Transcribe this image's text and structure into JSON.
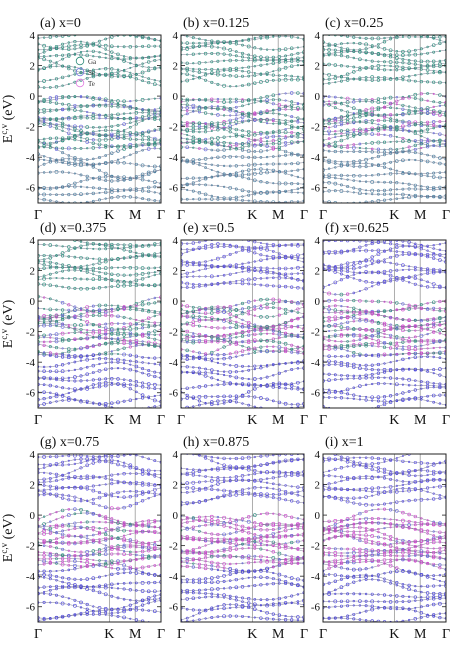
{
  "figure": {
    "ylabel_main": "E",
    "ylabel_sup": "c,v",
    "ylabel_unit": " (eV)"
  },
  "chart_data": [
    {
      "type": "line",
      "title": "(a) x=0",
      "ylim": [
        -7,
        4
      ],
      "yticks": [
        4,
        2,
        0,
        -2,
        -4,
        -6
      ],
      "xticks": [
        "Γ",
        "K",
        "M",
        "Γ"
      ],
      "xtick_pos": [
        0,
        0.58,
        0.79,
        1
      ],
      "weights": {
        "Ga": 1.0,
        "Sc": 0.0,
        "Te": 0.6
      },
      "legend": [
        "Ga",
        "Sc",
        "Te"
      ],
      "legend_colors": [
        "#2a8a78",
        "#7777dd",
        "#e07ae0"
      ],
      "ylabel": "E c,v (eV)"
    },
    {
      "type": "line",
      "title": "(b) x=0.125",
      "ylim": [
        -7,
        4
      ],
      "yticks": [
        4,
        2,
        0,
        -2,
        -4,
        -6
      ],
      "xticks": [
        "Γ",
        "K",
        "M",
        "Γ"
      ],
      "xtick_pos": [
        0,
        0.58,
        0.79,
        1
      ],
      "weights": {
        "Ga": 0.875,
        "Sc": 0.125,
        "Te": 0.6
      }
    },
    {
      "type": "line",
      "title": "(c) x=0.25",
      "ylim": [
        -7,
        4
      ],
      "yticks": [
        4,
        2,
        0,
        -2,
        -4,
        -6
      ],
      "xticks": [
        "Γ",
        "K",
        "M",
        "Γ"
      ],
      "xtick_pos": [
        0,
        0.58,
        0.79,
        1
      ],
      "weights": {
        "Ga": 0.75,
        "Sc": 0.25,
        "Te": 0.6
      }
    },
    {
      "type": "line",
      "title": "(d) x=0.375",
      "ylim": [
        -7,
        4
      ],
      "yticks": [
        4,
        2,
        0,
        -2,
        -4,
        -6
      ],
      "xticks": [
        "Γ",
        "K",
        "M",
        "Γ"
      ],
      "xtick_pos": [
        0,
        0.58,
        0.79,
        1
      ],
      "weights": {
        "Ga": 0.625,
        "Sc": 0.375,
        "Te": 0.6
      },
      "ylabel": "E c,v (eV)"
    },
    {
      "type": "line",
      "title": "(e) x=0.5",
      "ylim": [
        -7,
        4
      ],
      "yticks": [
        4,
        2,
        0,
        -2,
        -4,
        -6
      ],
      "xticks": [
        "Γ",
        "K",
        "M",
        "Γ"
      ],
      "xtick_pos": [
        0,
        0.58,
        0.79,
        1
      ],
      "weights": {
        "Ga": 0.5,
        "Sc": 0.5,
        "Te": 0.6
      }
    },
    {
      "type": "line",
      "title": "(f) x=0.625",
      "ylim": [
        -7,
        4
      ],
      "yticks": [
        4,
        2,
        0,
        -2,
        -4,
        -6
      ],
      "xticks": [
        "Γ",
        "K",
        "M",
        "Γ"
      ],
      "xtick_pos": [
        0,
        0.58,
        0.79,
        1
      ],
      "weights": {
        "Ga": 0.375,
        "Sc": 0.625,
        "Te": 0.6
      }
    },
    {
      "type": "line",
      "title": "(g) x=0.75",
      "ylim": [
        -7,
        4
      ],
      "yticks": [
        4,
        2,
        0,
        -2,
        -4,
        -6
      ],
      "xticks": [
        "Γ",
        "K",
        "M",
        "Γ"
      ],
      "xtick_pos": [
        0,
        0.58,
        0.79,
        1
      ],
      "weights": {
        "Ga": 0.25,
        "Sc": 0.75,
        "Te": 0.6
      },
      "ylabel": "E c,v (eV)"
    },
    {
      "type": "line",
      "title": "(h) x=0.875",
      "ylim": [
        -7,
        4
      ],
      "yticks": [
        4,
        2,
        0,
        -2,
        -4,
        -6
      ],
      "xticks": [
        "Γ",
        "K",
        "M",
        "Γ"
      ],
      "xtick_pos": [
        0,
        0.58,
        0.79,
        1
      ],
      "weights": {
        "Ga": 0.125,
        "Sc": 0.875,
        "Te": 0.6
      }
    },
    {
      "type": "line",
      "title": "(i) x=1",
      "ylim": [
        -7,
        4
      ],
      "yticks": [
        4,
        2,
        0,
        -2,
        -4,
        -6
      ],
      "xticks": [
        "Γ",
        "K",
        "M",
        "Γ"
      ],
      "xtick_pos": [
        0,
        0.58,
        0.79,
        1
      ],
      "weights": {
        "Ga": 0.0,
        "Sc": 1.0,
        "Te": 0.6
      }
    }
  ]
}
